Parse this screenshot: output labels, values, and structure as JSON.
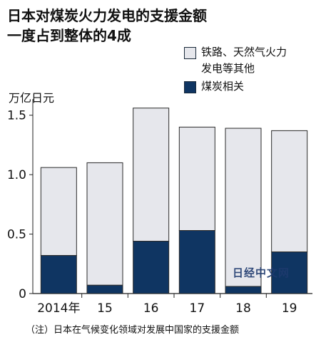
{
  "title_lines": [
    "日本对煤炭火力发电的支援金额",
    "一度占到整体的4成"
  ],
  "unit": "万亿日元",
  "footnote": "（注）日本在气候变化领域对发展中国家的支援金额",
  "watermark": "日经中文网",
  "colors": {
    "other": "#e6e7ec",
    "coal": "#0f3562",
    "outline": "#2a2a2a",
    "axis": "#222222"
  },
  "legend": [
    {
      "key": "other",
      "lines": [
        "铁路、天然气火力",
        "发电等其他"
      ]
    },
    {
      "key": "coal",
      "lines": [
        "煤炭相关"
      ]
    }
  ],
  "chart_data": {
    "type": "bar",
    "stacked": true,
    "categories": [
      "2014年",
      "15",
      "16",
      "17",
      "18",
      "19"
    ],
    "series": [
      {
        "name": "煤炭相关",
        "key": "coal",
        "values": [
          0.32,
          0.07,
          0.44,
          0.53,
          0.06,
          0.35
        ]
      },
      {
        "name": "铁路、天然气火力发电等其他",
        "key": "other",
        "values": [
          0.74,
          1.03,
          1.12,
          0.87,
          1.33,
          1.02
        ]
      }
    ],
    "ylabel": "万亿日元",
    "yticks": [
      0,
      0.5,
      1.0,
      1.5
    ],
    "ytick_labels": [
      "0",
      "0.5",
      "1.0",
      "1.5"
    ],
    "ylim": [
      0,
      1.6
    ],
    "legend_position": "top-right",
    "grid": false
  }
}
